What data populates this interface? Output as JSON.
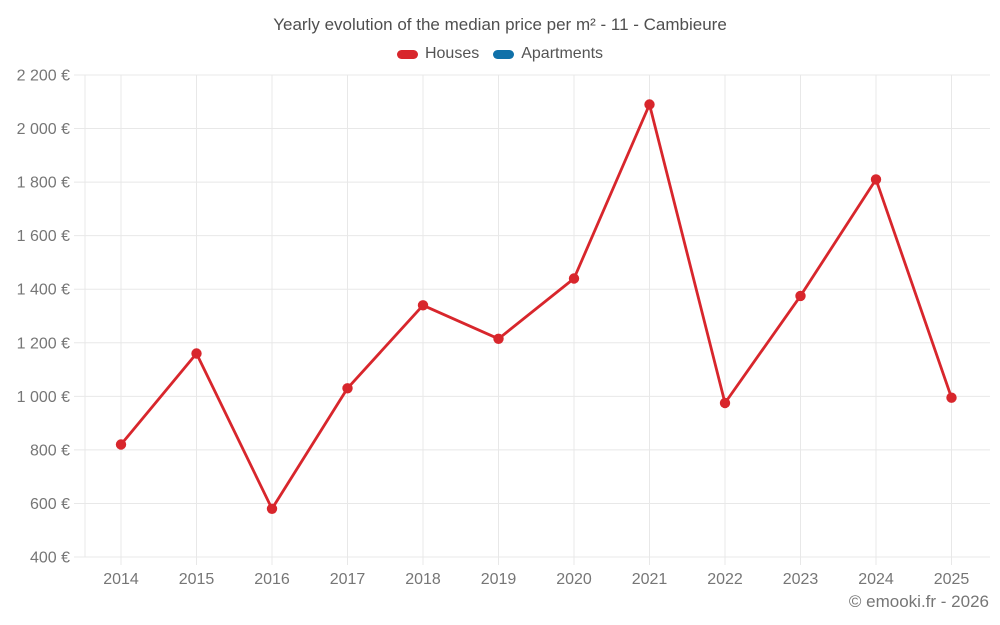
{
  "title": "Yearly evolution of the median price per m² - 11 - Cambieure",
  "watermark": "© emooki.fr - 2026",
  "legend": [
    {
      "label": "Houses",
      "color": "#d8262c"
    },
    {
      "label": "Apartments",
      "color": "#1071a9"
    }
  ],
  "chart_data": {
    "type": "line",
    "title": "Yearly evolution of the median price per m² - 11 - Cambieure",
    "categories": [
      "2014",
      "2015",
      "2016",
      "2017",
      "2018",
      "2019",
      "2020",
      "2021",
      "2022",
      "2023",
      "2024",
      "2025"
    ],
    "series": [
      {
        "name": "Houses",
        "color": "#d8262c",
        "values": [
          820,
          1160,
          580,
          1030,
          1340,
          1215,
          1440,
          2090,
          975,
          1375,
          1810,
          995
        ]
      },
      {
        "name": "Apartments",
        "color": "#1071a9",
        "values": []
      }
    ],
    "ylim": [
      400,
      2200
    ],
    "y_tick_step": 200,
    "y_tick_labels": [
      "400 €",
      "600 €",
      "800 €",
      "1 000 €",
      "1 200 €",
      "1 400 €",
      "1 600 €",
      "1 800 €",
      "2 000 €",
      "2 200 €"
    ],
    "ylabel": "",
    "xlabel": "",
    "grid": true,
    "legend_position": "top"
  },
  "colors": {
    "grid": "#e8e8e8",
    "tick_text": "#767676",
    "title_text": "#4f4f4f"
  }
}
